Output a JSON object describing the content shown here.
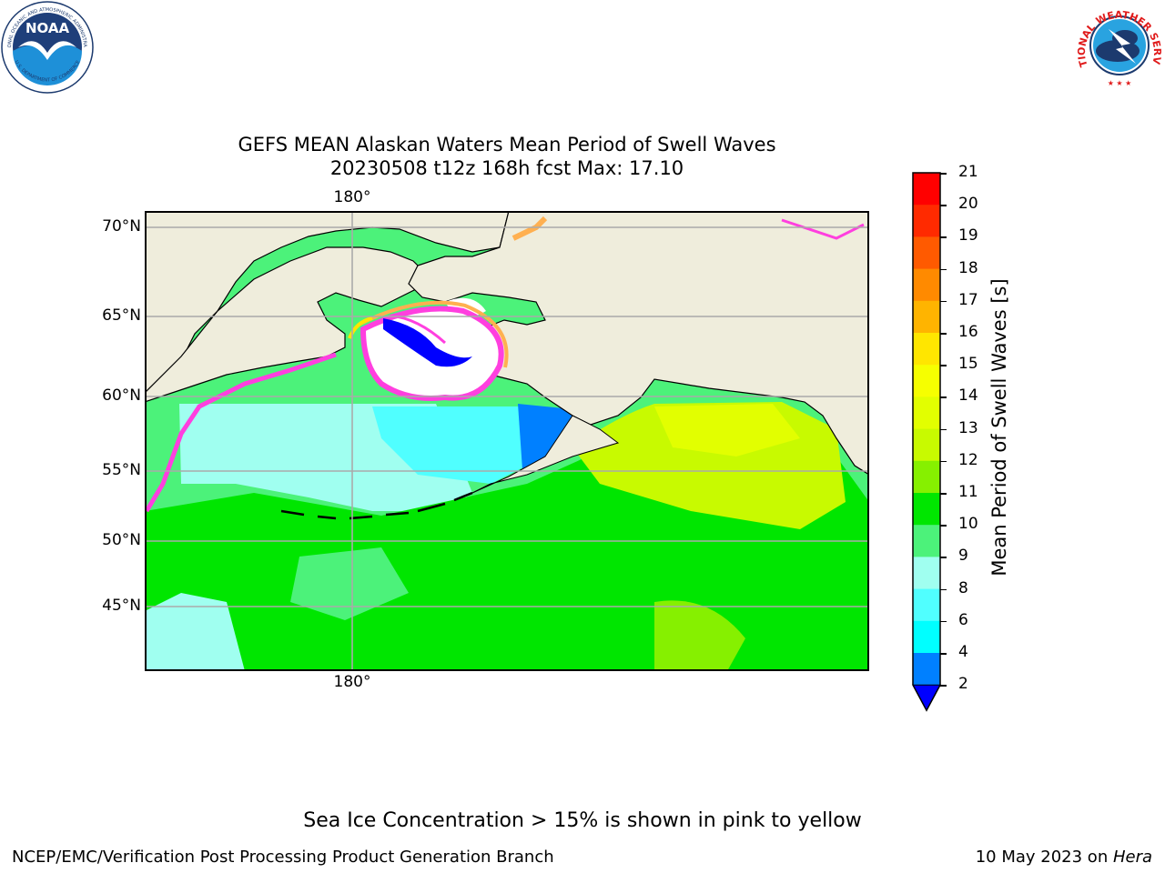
{
  "title": {
    "line1": "GEFS MEAN Alaskan Waters Mean Period of Swell Waves",
    "line2": "20230508 t12z 168h fcst   Max: 17.10"
  },
  "map": {
    "lat_labels": [
      "70°N",
      "65°N",
      "60°N",
      "55°N",
      "50°N",
      "45°N"
    ],
    "lon_label_top": "180°",
    "lon_label_bottom": "180°"
  },
  "colorbar": {
    "label": "Mean Period of Swell Waves [s]",
    "ticks": [
      "21",
      "20",
      "19",
      "18",
      "17",
      "16",
      "15",
      "14",
      "13",
      "12",
      "11",
      "10",
      "9",
      "8",
      "6",
      "4",
      "2"
    ],
    "colors": [
      "#ff0000",
      "#ff2a00",
      "#ff5a00",
      "#ff8a00",
      "#ffb400",
      "#ffe600",
      "#f6ff00",
      "#e2ff00",
      "#c8fa00",
      "#86f000",
      "#00e600",
      "#4cf27a",
      "#a0fff0",
      "#50ffff",
      "#00ffff",
      "#0080ff"
    ],
    "extend_color": "#0000ff"
  },
  "caption": "Sea Ice Concentration > 15% is shown in pink to yellow",
  "footer": {
    "left": "NCEP/EMC/Verification Post Processing Product Generation Branch",
    "right_date": "10 May 2023 on ",
    "right_machine": "Hera"
  },
  "logos": {
    "noaa_text": "NOAA",
    "noaa_ring_top": "NATIONAL OCEANIC AND ATMOSPHERIC ADMINISTRATION",
    "noaa_ring_bottom": "U.S. DEPARTMENT OF COMMERCE",
    "nws_ring": "NATIONAL WEATHER SERVICE"
  }
}
